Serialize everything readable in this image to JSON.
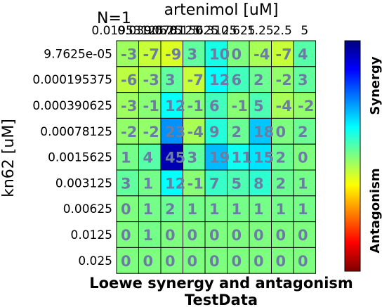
{
  "chart_data": {
    "type": "heatmap",
    "corner_label": "N=1",
    "title": "Loewe synergy and antagonism",
    "subtitle": "TestData",
    "xlabel": "artenimol [uM]",
    "ylabel": "kn62 [uM]",
    "x_ticklabels": [
      "0.01953125",
      "0.0390625",
      "0.078125",
      "0.15625",
      "0.3125",
      "0.625",
      "1.25",
      "2.5",
      "5"
    ],
    "y_ticklabels": [
      "9.7625e-05",
      "0.000195375",
      "0.000390625",
      "0.00078125",
      "0.0015625",
      "0.003125",
      "0.00625",
      "0.0125",
      "0.025"
    ],
    "values": [
      [
        -3,
        -7,
        -9,
        3,
        10,
        0,
        -4,
        -7,
        4
      ],
      [
        -6,
        -3,
        3,
        -7,
        12,
        6,
        2,
        -2,
        3
      ],
      [
        -3,
        -1,
        12,
        -1,
        6,
        -1,
        5,
        -4,
        -2
      ],
      [
        -2,
        -2,
        23,
        -4,
        9,
        2,
        18,
        0,
        2
      ],
      [
        1,
        4,
        45,
        3,
        19,
        11,
        15,
        2,
        0
      ],
      [
        3,
        1,
        12,
        -1,
        7,
        5,
        8,
        2,
        1
      ],
      [
        0,
        1,
        2,
        1,
        1,
        1,
        1,
        1,
        1
      ],
      [
        0,
        1,
        0,
        0,
        0,
        0,
        0,
        0,
        0
      ],
      [
        0,
        0,
        0,
        0,
        0,
        0,
        0,
        0,
        0
      ]
    ],
    "colorbar": {
      "top_label": "Synergy",
      "bottom_label": "Antagonism"
    },
    "colormap": [
      "#00007f",
      "#0000ff",
      "#007fff",
      "#00ffff",
      "#7fff7f",
      "#ffff00",
      "#ff7f00",
      "#ff0000",
      "#7f0000"
    ],
    "cell_text_color": "#6b7da3",
    "grid": true
  }
}
